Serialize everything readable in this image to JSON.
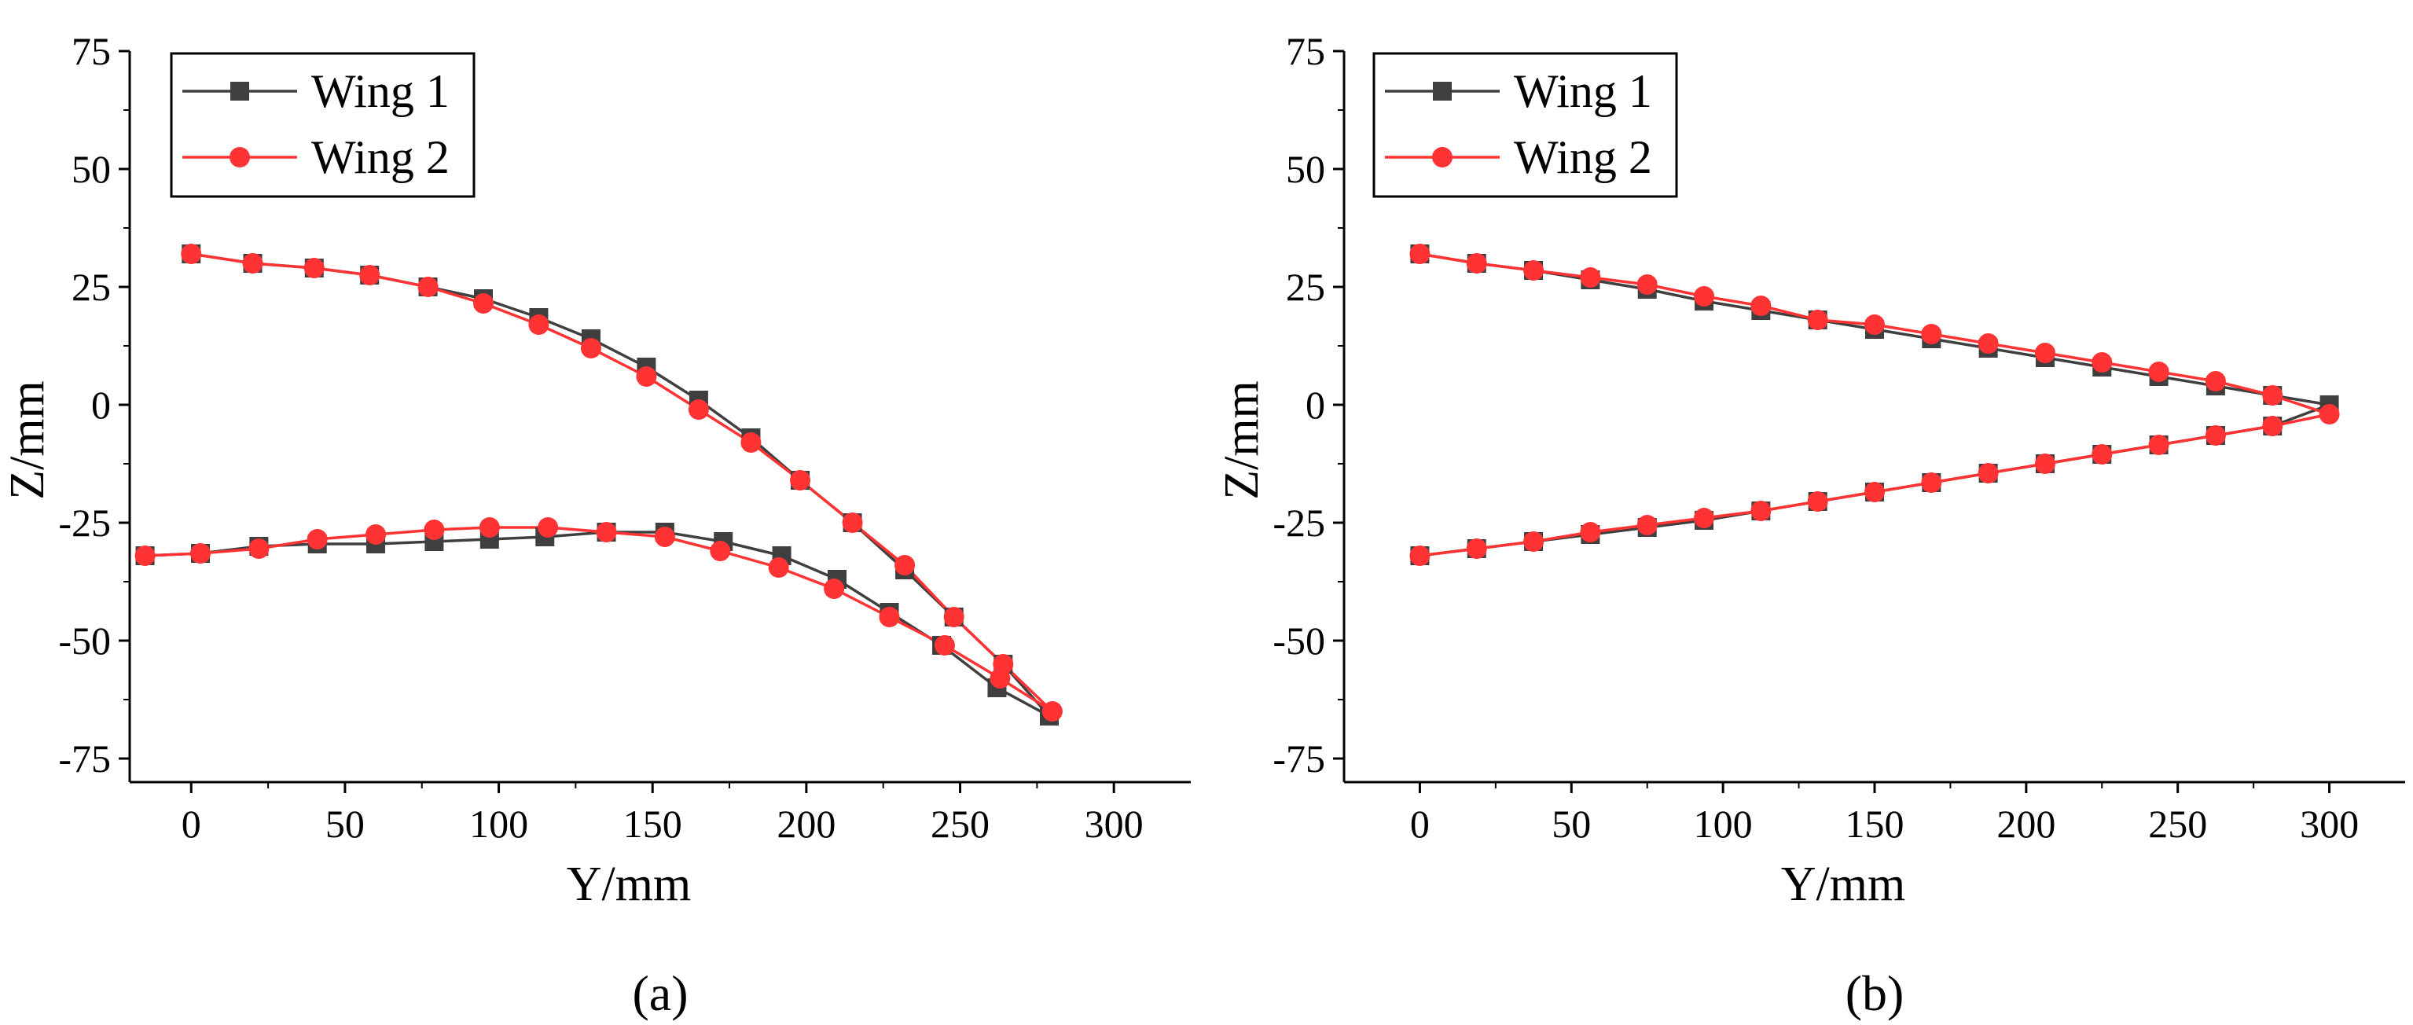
{
  "chart_data": [
    {
      "type": "line",
      "panel_label": "(a)",
      "xlabel": "Y/mm",
      "ylabel": "Z/mm",
      "xlim": [
        -20,
        325
      ],
      "ylim": [
        -80,
        75
      ],
      "xticks": [
        0,
        50,
        100,
        150,
        200,
        250,
        300
      ],
      "yticks": [
        -75,
        -50,
        -25,
        0,
        25,
        50,
        75
      ],
      "legend_position": "top-left",
      "series": [
        {
          "name": "Wing 1",
          "color": "#3f3f3f",
          "marker": "square",
          "points": [
            [
              0,
              32
            ],
            [
              20,
              30
            ],
            [
              40,
              29
            ],
            [
              58,
              27.5
            ],
            [
              77,
              25
            ],
            [
              95,
              22.5
            ],
            [
              113,
              18.5
            ],
            [
              130,
              14
            ],
            [
              148,
              8
            ],
            [
              165,
              1
            ],
            [
              182,
              -7
            ],
            [
              198,
              -16
            ],
            [
              215,
              -25
            ],
            [
              232,
              -35
            ],
            [
              248,
              -45
            ],
            [
              264,
              -55
            ],
            [
              279,
              -66
            ],
            [
              262,
              -60
            ],
            [
              244,
              -51
            ],
            [
              227,
              -44
            ],
            [
              210,
              -37
            ],
            [
              192,
              -32
            ],
            [
              173,
              -29
            ],
            [
              154,
              -27
            ],
            [
              135,
              -27
            ],
            [
              115,
              -28
            ],
            [
              97,
              -28.5
            ],
            [
              79,
              -29
            ],
            [
              60,
              -29.5
            ],
            [
              41,
              -29.5
            ],
            [
              22,
              -30
            ],
            [
              3,
              -31.5
            ],
            [
              -15,
              -32
            ]
          ]
        },
        {
          "name": "Wing 2",
          "color": "#ff3333",
          "marker": "circle",
          "points": [
            [
              0,
              32
            ],
            [
              20,
              30
            ],
            [
              40,
              29
            ],
            [
              58,
              27.5
            ],
            [
              77,
              25
            ],
            [
              95,
              21.5
            ],
            [
              113,
              17
            ],
            [
              130,
              12
            ],
            [
              148,
              6
            ],
            [
              165,
              -1
            ],
            [
              182,
              -8
            ],
            [
              198,
              -16
            ],
            [
              215,
              -25
            ],
            [
              232,
              -34
            ],
            [
              248,
              -45
            ],
            [
              264,
              -55
            ],
            [
              280,
              -65
            ],
            [
              263,
              -58
            ],
            [
              245,
              -51
            ],
            [
              227,
              -45
            ],
            [
              209,
              -39
            ],
            [
              191,
              -34.5
            ],
            [
              172,
              -31
            ],
            [
              154,
              -28
            ],
            [
              135,
              -27
            ],
            [
              116,
              -26
            ],
            [
              97,
              -26
            ],
            [
              79,
              -26.5
            ],
            [
              60,
              -27.5
            ],
            [
              41,
              -28.5
            ],
            [
              22,
              -30.5
            ],
            [
              3,
              -31.5
            ],
            [
              -15,
              -32
            ]
          ]
        }
      ]
    },
    {
      "type": "line",
      "panel_label": "(b)",
      "xlabel": "Y/mm",
      "ylabel": "Z/mm",
      "xlim": [
        -25,
        325
      ],
      "ylim": [
        -80,
        75
      ],
      "xticks": [
        0,
        50,
        100,
        150,
        200,
        250,
        300
      ],
      "yticks": [
        -75,
        -50,
        -25,
        0,
        25,
        50,
        75
      ],
      "legend_position": "top-left",
      "series": [
        {
          "name": "Wing 1",
          "color": "#3f3f3f",
          "marker": "square",
          "points": [
            [
              0,
              32
            ],
            [
              18.75,
              30
            ],
            [
              37.5,
              28.5
            ],
            [
              56.25,
              26.5
            ],
            [
              75,
              24.5
            ],
            [
              93.75,
              22
            ],
            [
              112.5,
              20
            ],
            [
              131.25,
              18
            ],
            [
              150,
              16
            ],
            [
              168.75,
              14
            ],
            [
              187.5,
              12
            ],
            [
              206.25,
              10
            ],
            [
              225,
              8
            ],
            [
              243.75,
              6
            ],
            [
              262.5,
              4
            ],
            [
              281.25,
              2
            ],
            [
              300,
              0
            ],
            [
              281.25,
              -4.5
            ],
            [
              262.5,
              -6.5
            ],
            [
              243.75,
              -8.5
            ],
            [
              225,
              -10.5
            ],
            [
              206.25,
              -12.5
            ],
            [
              187.5,
              -14.5
            ],
            [
              168.75,
              -16.5
            ],
            [
              150,
              -18.5
            ],
            [
              131.25,
              -20.5
            ],
            [
              112.5,
              -22.5
            ],
            [
              93.75,
              -24.5
            ],
            [
              75,
              -26
            ],
            [
              56.25,
              -27.5
            ],
            [
              37.5,
              -29
            ],
            [
              18.75,
              -30.5
            ],
            [
              0,
              -32
            ]
          ]
        },
        {
          "name": "Wing 2",
          "color": "#ff3333",
          "marker": "circle",
          "points": [
            [
              0,
              32
            ],
            [
              18.75,
              30
            ],
            [
              37.5,
              28.5
            ],
            [
              56.25,
              27
            ],
            [
              75,
              25.5
            ],
            [
              93.75,
              23
            ],
            [
              112.5,
              21
            ],
            [
              131.25,
              18
            ],
            [
              150,
              17
            ],
            [
              168.75,
              15
            ],
            [
              187.5,
              13
            ],
            [
              206.25,
              11
            ],
            [
              225,
              9
            ],
            [
              243.75,
              7
            ],
            [
              262.5,
              5
            ],
            [
              281.25,
              2
            ],
            [
              300,
              -2
            ],
            [
              281.25,
              -4.5
            ],
            [
              262.5,
              -6.5
            ],
            [
              243.75,
              -8.5
            ],
            [
              225,
              -10.5
            ],
            [
              206.25,
              -12.5
            ],
            [
              187.5,
              -14.5
            ],
            [
              168.75,
              -16.5
            ],
            [
              150,
              -18.5
            ],
            [
              131.25,
              -20.5
            ],
            [
              112.5,
              -22.5
            ],
            [
              93.75,
              -24
            ],
            [
              75,
              -25.5
            ],
            [
              56.25,
              -27
            ],
            [
              37.5,
              -29
            ],
            [
              18.75,
              -30.5
            ],
            [
              0,
              -32
            ]
          ]
        }
      ]
    }
  ]
}
